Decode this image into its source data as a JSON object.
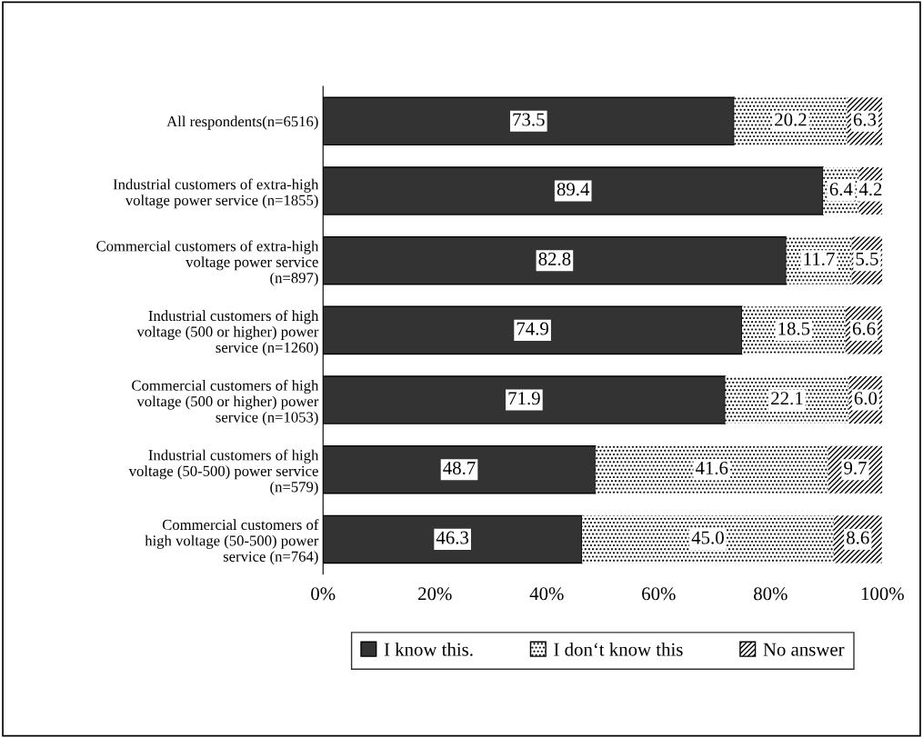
{
  "chart_data": {
    "type": "bar",
    "orientation": "horizontal",
    "stacked": true,
    "categories": [
      "All respondents(n=6516)",
      "Industrial customers of extra-high\nvoltage power service (n=1855)",
      "Commercial customers of extra-high\nvoltage power service\n(n=897)",
      "Industrial customers of high\nvoltage (500 or higher) power\nservice (n=1260)",
      "Commercial customers of high\nvoltage (500 or higher) power\nservice (n=1053)",
      "Industrial customers of high\nvoltage (50-500) power service\n(n=579)",
      "Commercial customers of\nhigh voltage (50-500) power\nservice (n=764)"
    ],
    "series": [
      {
        "name": "I know this.",
        "color": "#333333",
        "values": [
          73.5,
          89.4,
          82.8,
          74.9,
          71.9,
          48.7,
          46.3
        ],
        "value_labels": [
          "73.5",
          "89.4",
          "82.8",
          "74.9",
          "71.9",
          "48.7",
          "46.3"
        ]
      },
      {
        "name": "I don‘t know this",
        "color": "#ffffff",
        "values": [
          20.2,
          6.4,
          11.7,
          18.5,
          22.1,
          41.6,
          45.0
        ],
        "value_labels": [
          "20.2",
          "6.4",
          "11.7",
          "18.5",
          "22.1",
          "41.6",
          "45.0"
        ]
      },
      {
        "name": "No answer",
        "color": "#ffffff",
        "values": [
          6.3,
          4.2,
          5.5,
          6.6,
          6.0,
          9.7,
          8.6
        ],
        "value_labels": [
          "6.3",
          "4.2",
          "5.5",
          "6.6",
          "6.0",
          "9.7",
          "8.6"
        ]
      }
    ],
    "xlim": [
      0,
      100
    ],
    "xticks": [
      {
        "value": 0,
        "label": "0%"
      },
      {
        "value": 20,
        "label": "20%"
      },
      {
        "value": 40,
        "label": "40%"
      },
      {
        "value": 60,
        "label": "60%"
      },
      {
        "value": 80,
        "label": "80%"
      },
      {
        "value": 100,
        "label": "100%"
      }
    ],
    "legend": "bottom",
    "grid": false
  }
}
